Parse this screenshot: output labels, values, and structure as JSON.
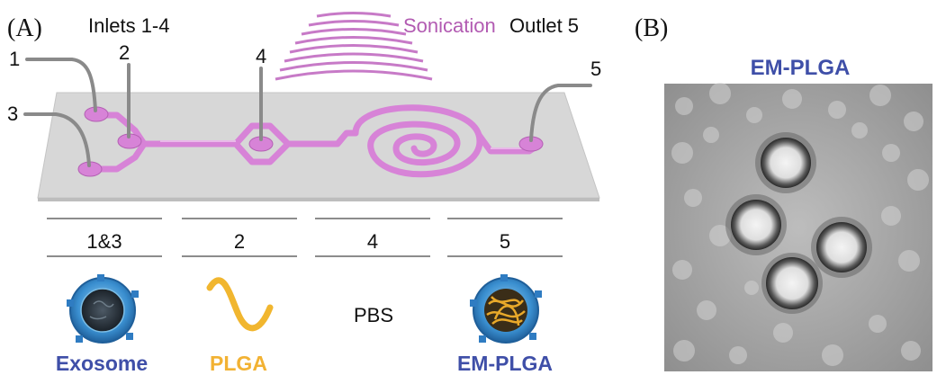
{
  "panels": {
    "a_label": "(A)",
    "b_label": "(B)"
  },
  "header": {
    "inlets": "Inlets 1-4",
    "sonication": "Sonication",
    "outlet": "Outlet 5"
  },
  "ports": [
    "1",
    "2",
    "3",
    "4",
    "5"
  ],
  "table": {
    "columns": [
      "1&3",
      "2",
      "4",
      "5"
    ]
  },
  "components": {
    "exosome": "Exosome",
    "plga": "PLGA",
    "pbs": "PBS",
    "em_plga": "EM-PLGA"
  },
  "micrograph": {
    "title": "EM-PLGA"
  },
  "colors": {
    "channel": "#d67fd6",
    "sonication": "#b25bb2",
    "blue_text": "#3f4fa8",
    "orange_text": "#f2b233",
    "platform": "#d6d6d6",
    "divider": "#8a8a8a"
  },
  "icons": [
    "exosome-icon",
    "plga-wave-icon",
    "em-plga-icon",
    "sonication-waves-icon"
  ]
}
